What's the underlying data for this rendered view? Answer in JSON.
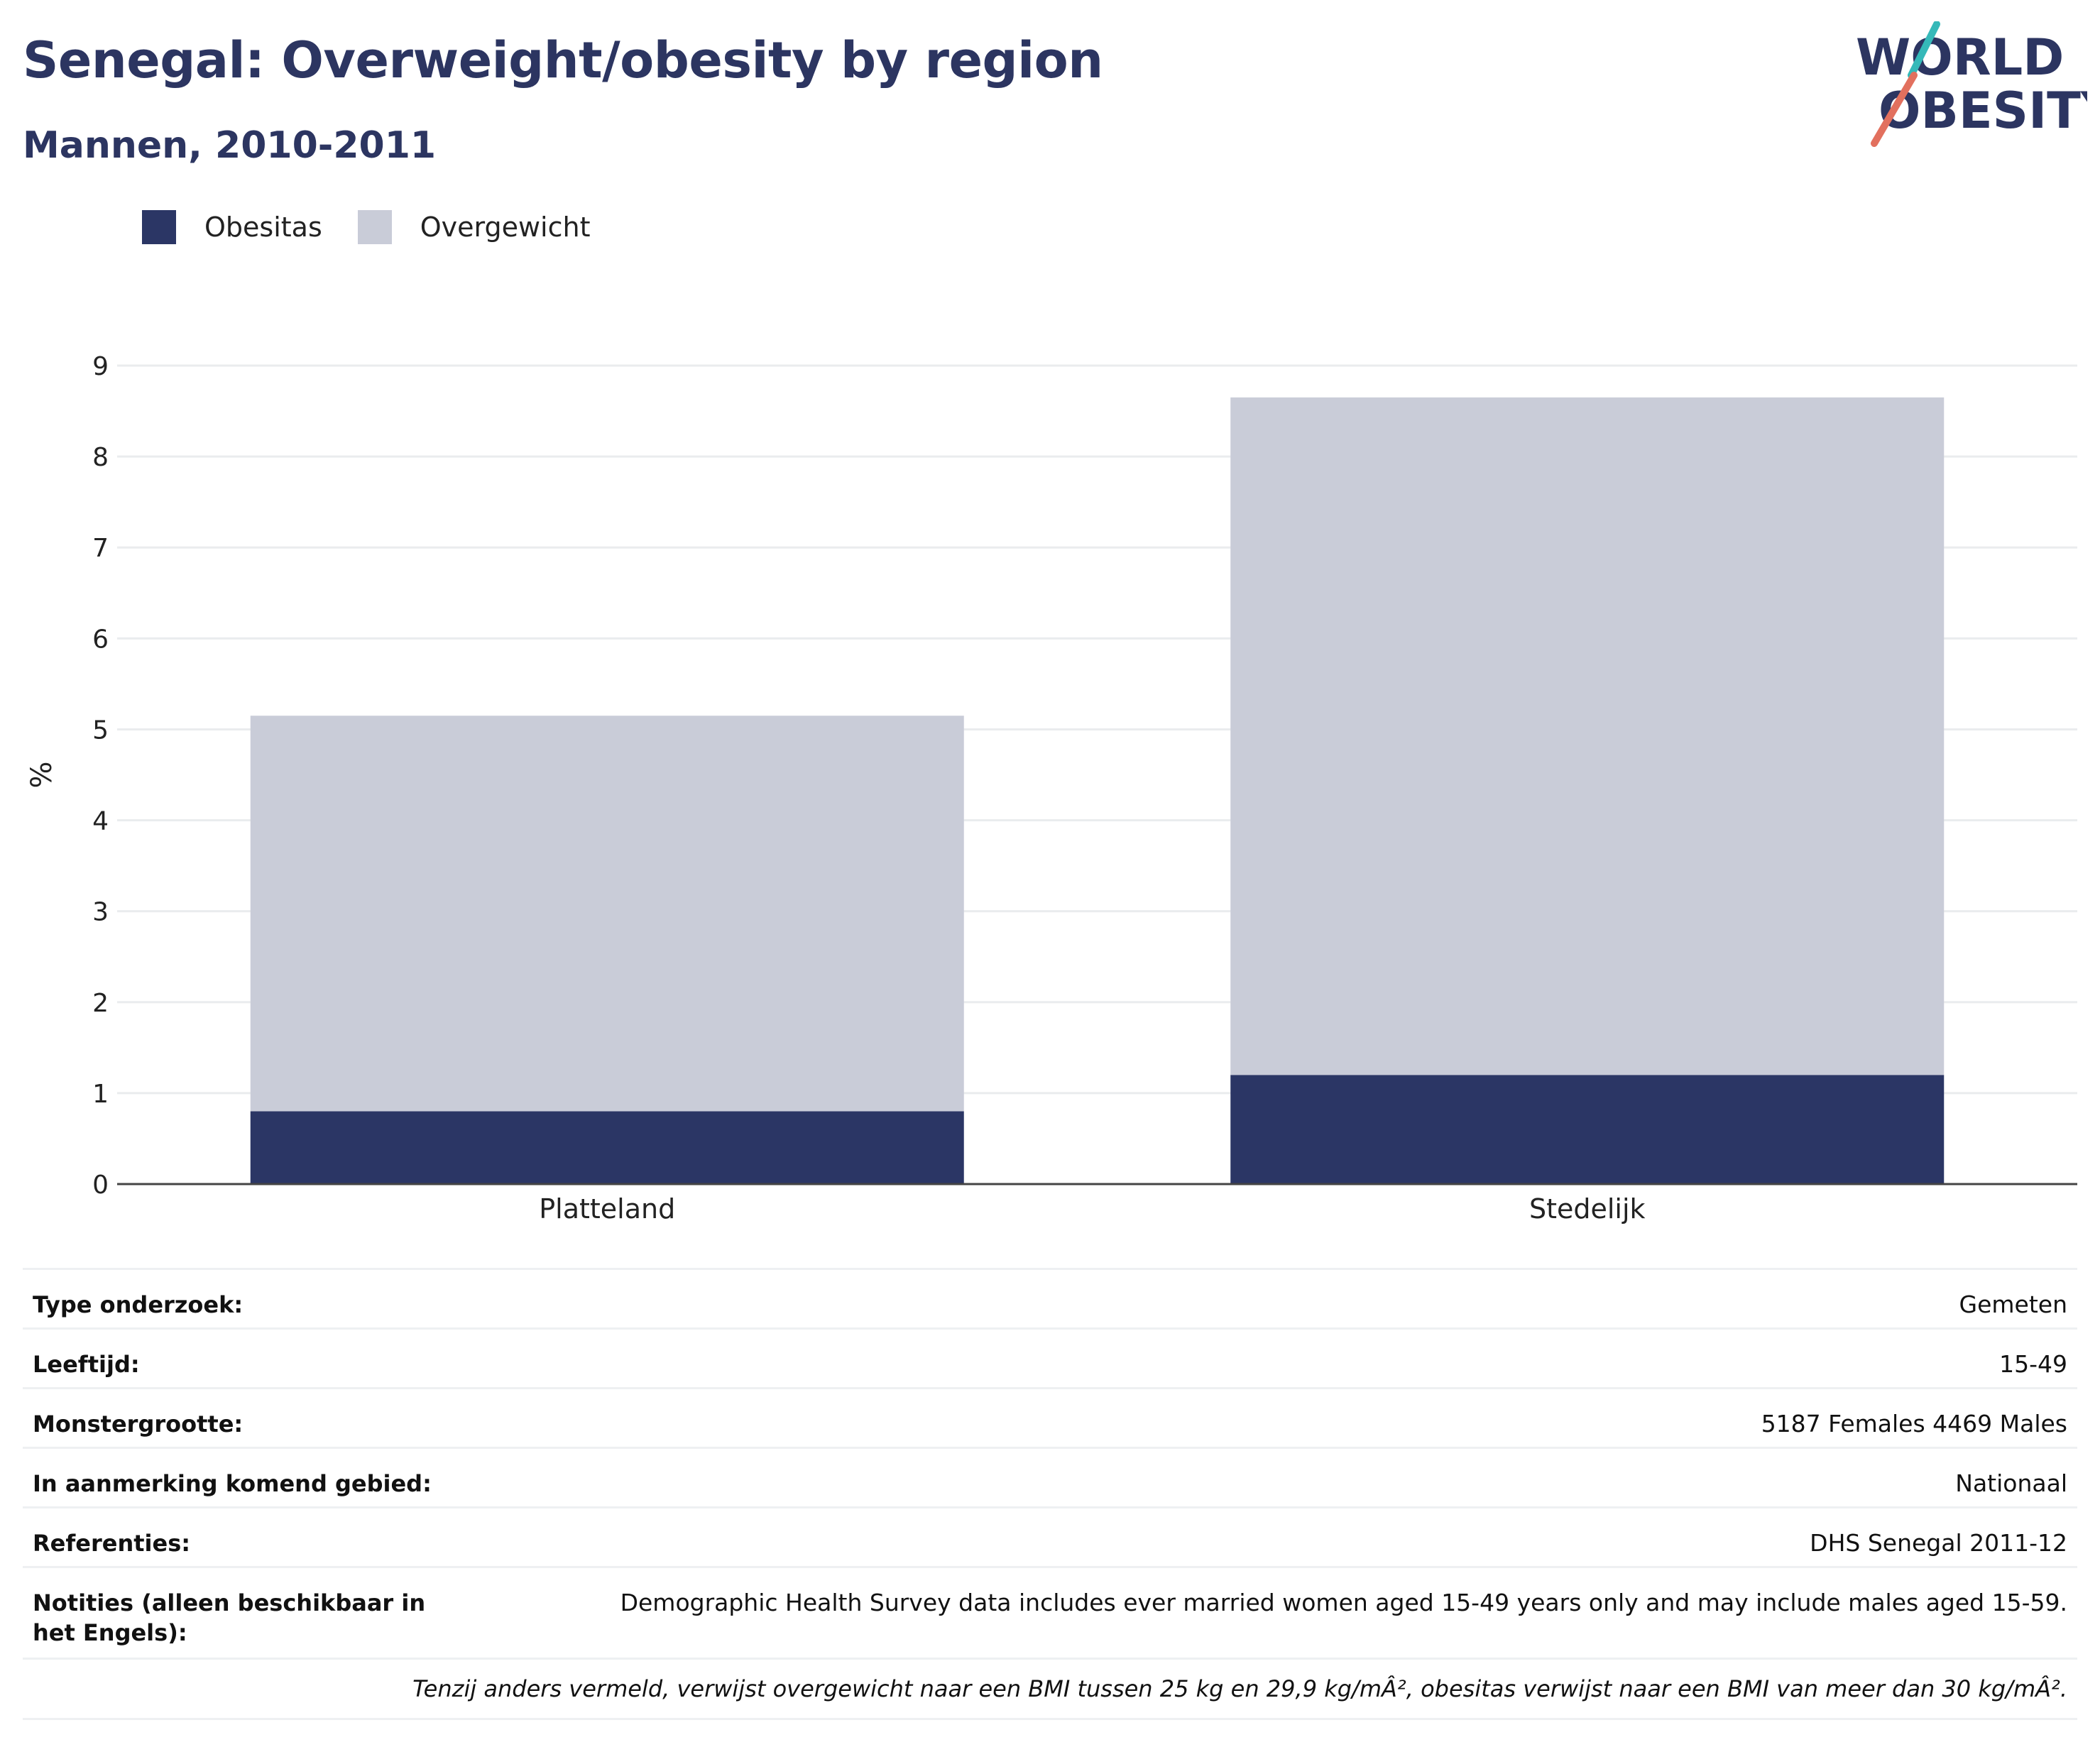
{
  "header": {
    "title": "Senegal: Overweight/obesity by region",
    "subtitle": "Mannen, 2010-2011"
  },
  "logo": {
    "line1": "WORLD",
    "line2": "OBESITY"
  },
  "colors": {
    "obesitas": "#2b3665",
    "overgewicht": "#c9ccd8",
    "grid": "#eaecee",
    "axis": "#444444",
    "logo_text": "#2c3561",
    "logo_teal": "#35b9b9",
    "logo_coral": "#e2705e"
  },
  "legend": [
    {
      "label": "Obesitas",
      "color": "#2b3665"
    },
    {
      "label": "Overgewicht",
      "color": "#c9ccd8"
    }
  ],
  "chart_data": {
    "type": "bar",
    "stacked": true,
    "categories": [
      "Platteland",
      "Stedelijk"
    ],
    "series": [
      {
        "name": "Obesitas",
        "values": [
          0.8,
          1.2
        ]
      },
      {
        "name": "Overgewicht",
        "values": [
          4.35,
          7.45
        ]
      }
    ],
    "ylabel": "%",
    "ylim": [
      0,
      9
    ],
    "yticks": [
      "0",
      "1",
      "2",
      "3",
      "4",
      "5",
      "6",
      "7",
      "8",
      "9"
    ],
    "grid": true,
    "legend_position": "top-left"
  },
  "info": [
    {
      "key": "Type onderzoek:",
      "value": "Gemeten"
    },
    {
      "key": "Leeftijd:",
      "value": "15-49"
    },
    {
      "key": "Monstergrootte:",
      "value": "5187 Females 4469 Males"
    },
    {
      "key": "In aanmerking komend gebied:",
      "value": "Nationaal"
    },
    {
      "key": "Referenties:",
      "value": "DHS Senegal 2011-12"
    },
    {
      "key": "Notities (alleen beschikbaar in het Engels):",
      "value": "Demographic Health Survey data includes ever married women aged 15-49 years only and may include males aged 15-59."
    }
  ],
  "footnote": "Tenzij anders vermeld, verwijst overgewicht naar een BMI tussen 25 kg en 29,9 kg/mÂ², obesitas verwijst naar een BMI van meer dan 30 kg/mÂ²."
}
